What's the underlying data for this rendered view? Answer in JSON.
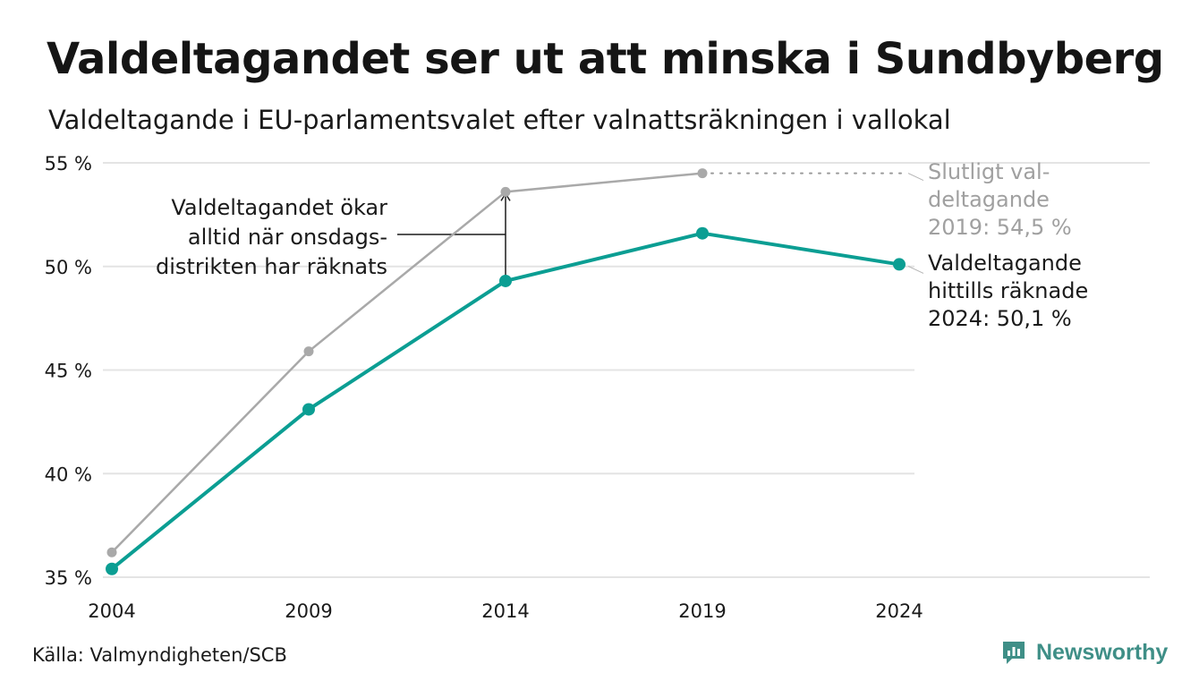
{
  "title": "Valdeltagandet ser ut att minska i Sundbyberg",
  "subtitle": "Valdeltagande i EU-parlamentsvalet efter valnattsräkningen i vallokal",
  "source": "Källa: Valmyndigheten/SCB",
  "brand": "Newsworthy",
  "colors": {
    "counted": "#0b9e93",
    "final": "#a9a9a9",
    "grid": "#e4e4e4",
    "text": "#1a1a1a",
    "brand": "#3f8f87"
  },
  "chart_data": {
    "type": "line",
    "x": [
      "2004",
      "2009",
      "2014",
      "2019",
      "2024"
    ],
    "ylim": [
      35,
      55
    ],
    "yticks": [
      35,
      40,
      45,
      50,
      55
    ],
    "ytick_labels": [
      "35 %",
      "40 %",
      "45 %",
      "50 %",
      "55 %"
    ],
    "grid": true,
    "series": [
      {
        "id": "final",
        "values": [
          36.2,
          45.9,
          53.6,
          54.5,
          null
        ],
        "color": "#a9a9a9"
      },
      {
        "id": "counted",
        "values": [
          35.4,
          43.1,
          49.3,
          51.6,
          50.1
        ],
        "color": "#0b9e93"
      }
    ],
    "annotations": {
      "gap_note": [
        "Valdeltagandet ökar",
        "alltid när onsdags-",
        "distrikten har räknats"
      ],
      "final_label": [
        "Slutligt val-",
        "deltagande",
        "2019: 54,5 %"
      ],
      "counted_label": [
        "Valdeltagande",
        "hittills räknade",
        "2024: 50,1 %"
      ]
    }
  }
}
